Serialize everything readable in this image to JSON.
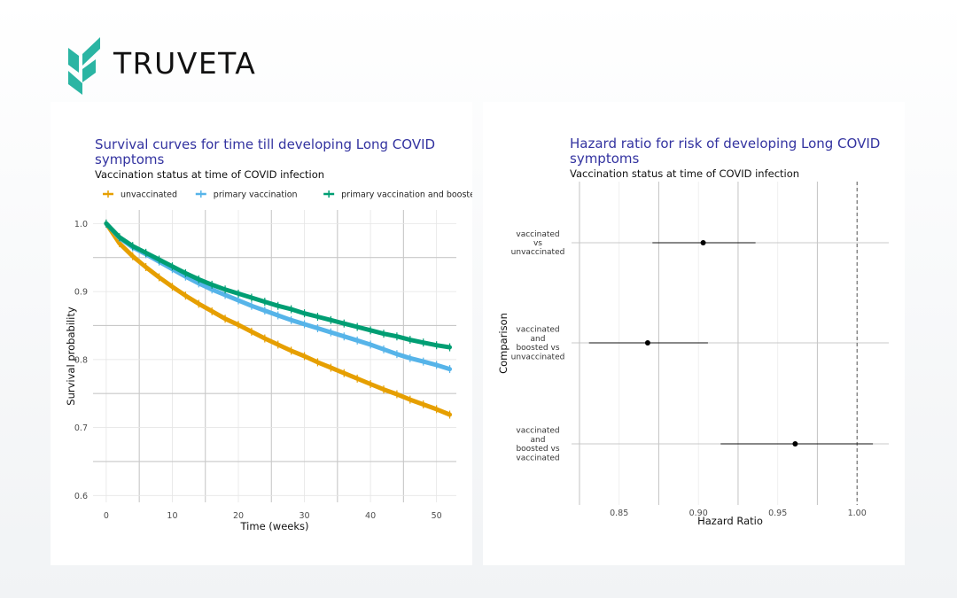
{
  "brand": {
    "name": "TRUVETA",
    "logo_color": "#2bb5a3"
  },
  "chart_data": [
    {
      "type": "line",
      "title": "Survival curves for time till developing Long COVID symptoms",
      "subtitle": "Vaccination status at time of COVID infection",
      "xlabel": "Time (weeks)",
      "ylabel": "Survival probability",
      "xlim": [
        -2,
        53
      ],
      "ylim": [
        0.59,
        1.02
      ],
      "x_ticks": [
        0,
        10,
        20,
        30,
        40,
        50
      ],
      "y_ticks": [
        0.6,
        0.7,
        0.8,
        0.9,
        1.0
      ],
      "y_tick_labels": [
        "0.6",
        "0.7",
        "0.8",
        "0.9",
        "1.0"
      ],
      "grid": true,
      "legend_position": "top",
      "x": [
        0,
        2,
        4,
        6,
        8,
        10,
        12,
        14,
        16,
        18,
        20,
        22,
        24,
        26,
        28,
        30,
        32,
        34,
        36,
        38,
        40,
        42,
        44,
        46,
        48,
        50,
        52
      ],
      "series": [
        {
          "name": "unvaccinated",
          "color": "#e69f00",
          "values": [
            1.0,
            0.971,
            0.952,
            0.936,
            0.921,
            0.907,
            0.894,
            0.882,
            0.871,
            0.86,
            0.851,
            0.841,
            0.831,
            0.822,
            0.813,
            0.805,
            0.796,
            0.788,
            0.78,
            0.772,
            0.764,
            0.756,
            0.749,
            0.741,
            0.734,
            0.727,
            0.719
          ]
        },
        {
          "name": "primary vaccination",
          "color": "#56b4e9",
          "values": [
            1.0,
            0.979,
            0.965,
            0.955,
            0.944,
            0.933,
            0.922,
            0.912,
            0.903,
            0.895,
            0.887,
            0.879,
            0.872,
            0.865,
            0.858,
            0.852,
            0.846,
            0.84,
            0.834,
            0.828,
            0.822,
            0.815,
            0.808,
            0.802,
            0.797,
            0.792,
            0.786
          ]
        },
        {
          "name": "primary vaccination and booster",
          "color": "#009e73",
          "values": [
            1.0,
            0.98,
            0.967,
            0.957,
            0.947,
            0.937,
            0.927,
            0.918,
            0.91,
            0.903,
            0.897,
            0.891,
            0.885,
            0.879,
            0.874,
            0.868,
            0.863,
            0.858,
            0.853,
            0.848,
            0.843,
            0.838,
            0.834,
            0.829,
            0.825,
            0.821,
            0.818
          ]
        }
      ]
    },
    {
      "type": "forest",
      "title": "Hazard ratio for risk of developing Long COVID symptoms",
      "subtitle": "Vaccination status at time of COVID infection",
      "xlabel": "Hazard Ratio",
      "ylabel": "Comparison",
      "xlim": [
        0.82,
        1.02
      ],
      "x_ticks": [
        0.85,
        0.9,
        0.95,
        1.0
      ],
      "x_tick_labels": [
        "0.85",
        "0.90",
        "0.95",
        "1.00"
      ],
      "reference_line": 1.0,
      "grid": true,
      "rows": [
        {
          "label": [
            "vaccinated",
            "vs",
            "unvaccinated"
          ],
          "estimate": 0.903,
          "ci_low": 0.871,
          "ci_high": 0.936
        },
        {
          "label": [
            "vaccinated",
            "and",
            "boosted vs",
            "unvaccinated"
          ],
          "estimate": 0.868,
          "ci_low": 0.831,
          "ci_high": 0.906
        },
        {
          "label": [
            "vaccinated",
            "and",
            "boosted vs",
            "vaccinated"
          ],
          "estimate": 0.961,
          "ci_low": 0.914,
          "ci_high": 1.01
        }
      ]
    }
  ]
}
